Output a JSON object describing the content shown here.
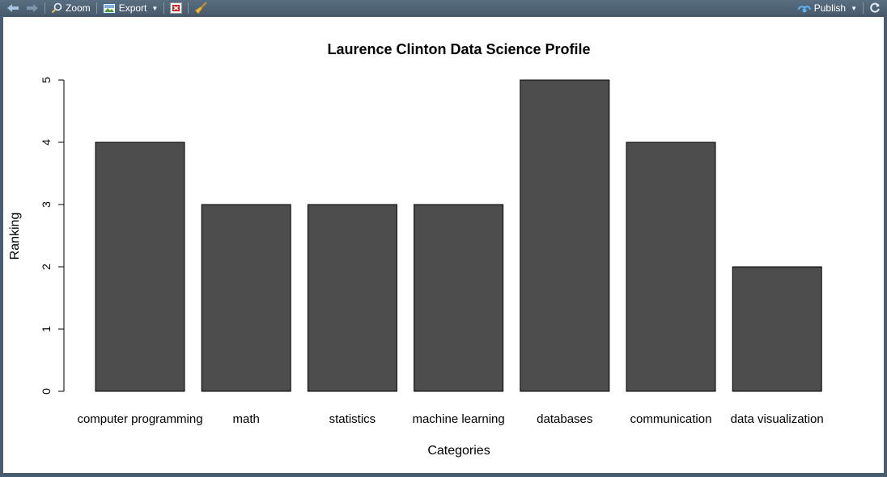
{
  "toolbar": {
    "zoom_label": "Zoom",
    "export_label": "Export",
    "publish_label": "Publish",
    "icons": {
      "back": "arrow-left-icon",
      "forward": "arrow-right-icon",
      "zoom": "magnifier-icon",
      "export": "image-export-icon",
      "remove": "remove-plot-icon",
      "clear": "broom-icon",
      "publish": "publish-icon",
      "refresh": "refresh-icon"
    }
  },
  "colors": {
    "bar_fill": "#4d4d4d",
    "bar_stroke": "#000000",
    "background": "#ffffff"
  },
  "chart_data": {
    "type": "bar",
    "title": "Laurence Clinton Data Science Profile",
    "xlabel": "Categories",
    "ylabel": "Ranking",
    "categories": [
      "computer programming",
      "math",
      "statistics",
      "machine learning",
      "databases",
      "communication",
      "data visualization"
    ],
    "values": [
      4,
      3,
      3,
      3,
      5,
      4,
      2
    ],
    "ylim": [
      0,
      5
    ],
    "yticks": [
      0,
      1,
      2,
      3,
      4,
      5
    ],
    "grid": false,
    "legend": "none"
  }
}
